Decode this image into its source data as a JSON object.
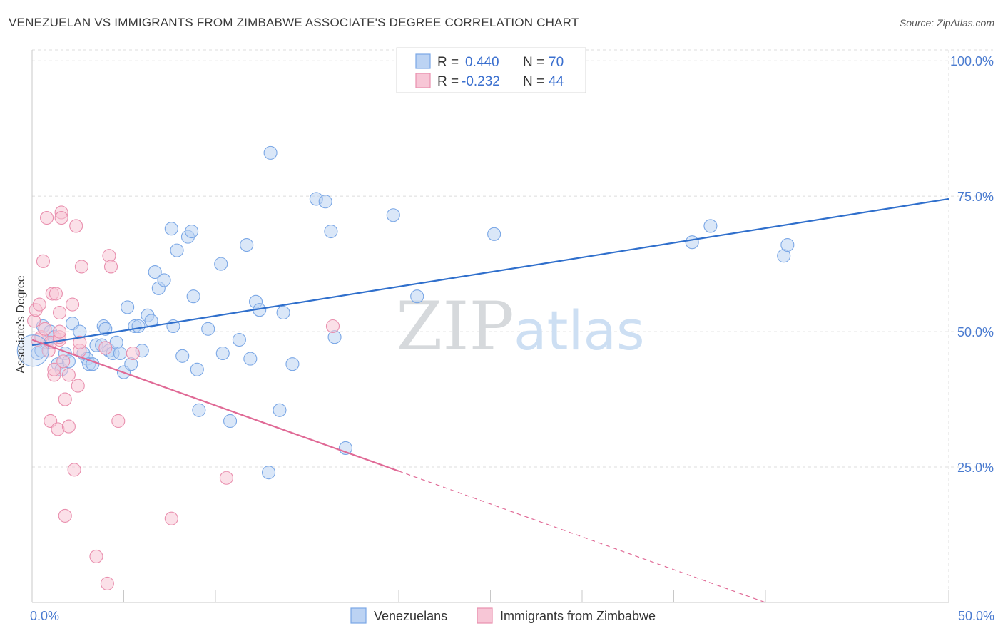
{
  "title": "VENEZUELAN VS IMMIGRANTS FROM ZIMBABWE ASSOCIATE'S DEGREE CORRELATION CHART",
  "source": "Source: ZipAtlas.com",
  "watermark": {
    "zip": "ZIP",
    "atlas": "atlas"
  },
  "chart_data": {
    "type": "scatter",
    "ylabel": "Associate's Degree",
    "xlim": [
      0,
      50
    ],
    "ylim": [
      0,
      102
    ],
    "x_ticks": [
      {
        "value": 0,
        "label": "0.0%"
      },
      {
        "value": 50,
        "label": "50.0%"
      }
    ],
    "y_ticks": [
      {
        "value": 25,
        "label": "25.0%"
      },
      {
        "value": 50,
        "label": "50.0%"
      },
      {
        "value": 75,
        "label": "75.0%"
      },
      {
        "value": 100,
        "label": "100.0%"
      }
    ],
    "grid": true,
    "legend_position": "top-center",
    "legend": [
      {
        "r_label": "R = ",
        "r_value": "0.440",
        "n_label": "N = ",
        "n_value": "70"
      },
      {
        "r_label": "R = ",
        "r_value": "-0.232",
        "n_label": "N = ",
        "n_value": "44"
      }
    ],
    "series": [
      {
        "name": "Venezuelans",
        "color": "#7aa7e6",
        "fill": "#bcd3f3",
        "line_color": "#2f6fcc",
        "trend": {
          "x0": 0,
          "y0": 47.5,
          "x1": 50,
          "y1": 74.5,
          "dashed_from": null
        },
        "points": [
          [
            0.3,
            46
          ],
          [
            0.5,
            46.5
          ],
          [
            0.6,
            51
          ],
          [
            0.8,
            48
          ],
          [
            1.0,
            50
          ],
          [
            1.2,
            49
          ],
          [
            1.4,
            44
          ],
          [
            1.6,
            43
          ],
          [
            1.8,
            46
          ],
          [
            2.0,
            44.5
          ],
          [
            2.2,
            51.5
          ],
          [
            2.6,
            50
          ],
          [
            2.8,
            46
          ],
          [
            3.0,
            45
          ],
          [
            3.1,
            44
          ],
          [
            3.3,
            44
          ],
          [
            3.5,
            47.5
          ],
          [
            3.8,
            47.5
          ],
          [
            3.9,
            51
          ],
          [
            4.0,
            50.5
          ],
          [
            4.2,
            46.5
          ],
          [
            4.4,
            46
          ],
          [
            4.6,
            48
          ],
          [
            4.8,
            46
          ],
          [
            5.0,
            42.5
          ],
          [
            5.2,
            54.5
          ],
          [
            5.4,
            44
          ],
          [
            5.6,
            51
          ],
          [
            5.8,
            51
          ],
          [
            6.0,
            46.5
          ],
          [
            6.3,
            53
          ],
          [
            6.5,
            52
          ],
          [
            6.7,
            61
          ],
          [
            6.9,
            58
          ],
          [
            7.2,
            59.5
          ],
          [
            7.6,
            69
          ],
          [
            7.7,
            51
          ],
          [
            7.9,
            65
          ],
          [
            8.2,
            45.5
          ],
          [
            8.5,
            67.5
          ],
          [
            8.7,
            68.5
          ],
          [
            8.8,
            56.5
          ],
          [
            9.0,
            43
          ],
          [
            9.1,
            35.5
          ],
          [
            9.6,
            50.5
          ],
          [
            10.3,
            62.5
          ],
          [
            10.4,
            46
          ],
          [
            10.8,
            33.5
          ],
          [
            11.3,
            48.5
          ],
          [
            11.7,
            66
          ],
          [
            11.9,
            45
          ],
          [
            12.2,
            55.5
          ],
          [
            12.4,
            54
          ],
          [
            12.9,
            24
          ],
          [
            13.0,
            83
          ],
          [
            13.5,
            35.5
          ],
          [
            13.7,
            53.5
          ],
          [
            14.2,
            44
          ],
          [
            15.5,
            74.5
          ],
          [
            16.0,
            74
          ],
          [
            16.3,
            68.5
          ],
          [
            16.5,
            49
          ],
          [
            17.1,
            28.5
          ],
          [
            19.7,
            71.5
          ],
          [
            21.0,
            56.5
          ],
          [
            25.2,
            68
          ],
          [
            36.0,
            66.5
          ],
          [
            37.0,
            69.5
          ],
          [
            41.0,
            64
          ],
          [
            41.2,
            66
          ]
        ]
      },
      {
        "name": "Immigrants from Zimbabwe",
        "color": "#e98fae",
        "fill": "#f7c6d6",
        "line_color": "#e06a96",
        "trend": {
          "x0": 0,
          "y0": 48.5,
          "x1": 40,
          "y1": 0,
          "dashed_from": 20
        },
        "points": [
          [
            0.1,
            52
          ],
          [
            0.2,
            54
          ],
          [
            0.3,
            48.5
          ],
          [
            0.4,
            55
          ],
          [
            0.5,
            49
          ],
          [
            0.6,
            63
          ],
          [
            0.7,
            50.5
          ],
          [
            0.8,
            71
          ],
          [
            0.9,
            46.5
          ],
          [
            1.0,
            48
          ],
          [
            1.0,
            33.5
          ],
          [
            1.1,
            57
          ],
          [
            1.2,
            42
          ],
          [
            1.2,
            43
          ],
          [
            1.3,
            57
          ],
          [
            1.4,
            32
          ],
          [
            1.5,
            53.5
          ],
          [
            1.5,
            48.5
          ],
          [
            1.5,
            49
          ],
          [
            1.5,
            50
          ],
          [
            1.6,
            72
          ],
          [
            1.6,
            71
          ],
          [
            1.7,
            44.5
          ],
          [
            1.8,
            37.5
          ],
          [
            1.8,
            16
          ],
          [
            2.0,
            42
          ],
          [
            2.0,
            32.5
          ],
          [
            2.2,
            55
          ],
          [
            2.3,
            24.5
          ],
          [
            2.4,
            69.5
          ],
          [
            2.5,
            40
          ],
          [
            2.6,
            46.5
          ],
          [
            2.6,
            48
          ],
          [
            2.7,
            62
          ],
          [
            3.5,
            8.5
          ],
          [
            4.0,
            47
          ],
          [
            4.1,
            3.5
          ],
          [
            4.2,
            64
          ],
          [
            4.3,
            62
          ],
          [
            4.7,
            33.5
          ],
          [
            5.5,
            46
          ],
          [
            7.6,
            15.5
          ],
          [
            10.6,
            23
          ],
          [
            16.4,
            51
          ]
        ]
      }
    ]
  }
}
